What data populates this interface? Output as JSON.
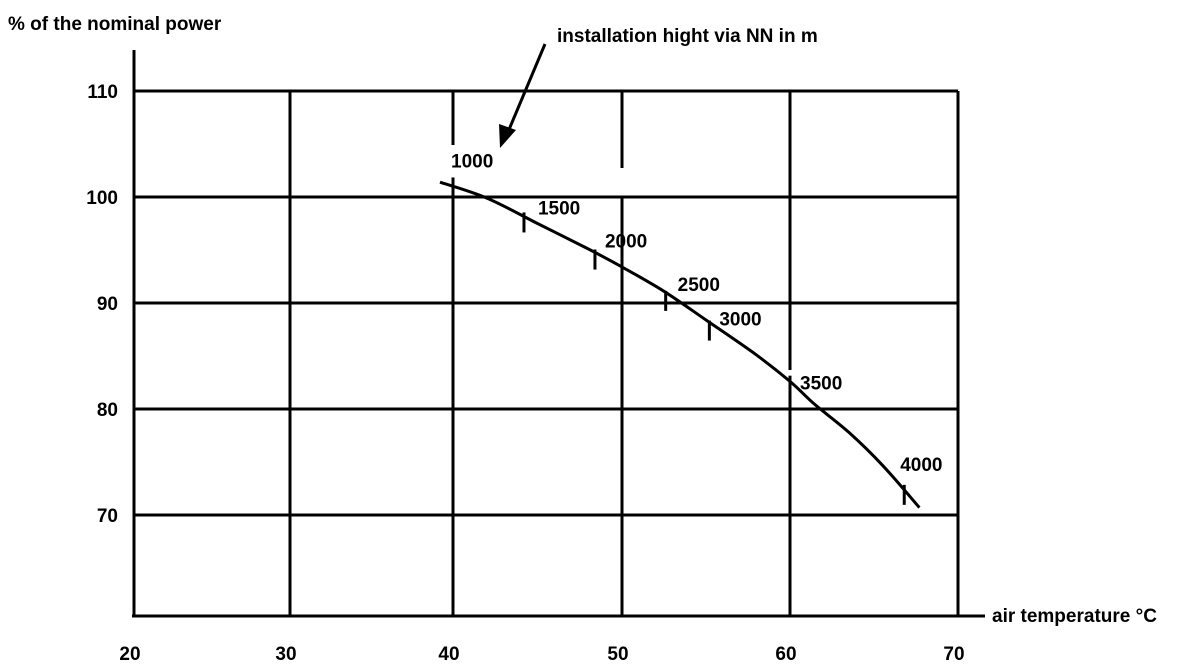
{
  "chart_data": {
    "type": "line",
    "title": "",
    "ylabel": "% of the nominal power",
    "xlabel": "air temperature °C",
    "xlim": [
      20,
      70
    ],
    "ylim": [
      60,
      115
    ],
    "x_ticks": [
      20,
      30,
      40,
      50,
      60,
      70
    ],
    "y_ticks": [
      70,
      80,
      90,
      100,
      110
    ],
    "x_tick_labels": [
      "20",
      "30",
      "40",
      "50",
      "60",
      "70"
    ],
    "y_tick_labels": [
      "70",
      "80",
      "90",
      "100",
      "110"
    ],
    "grid": true,
    "annotation": {
      "text": "installation hight via NN in m",
      "points_to": {
        "x": 42.5,
        "y": 105.2
      }
    },
    "series": [
      {
        "points": [
          {
            "x": 39.2,
            "y": 101.4
          },
          {
            "x": 42.0,
            "y": 99.9
          },
          {
            "x": 45.0,
            "y": 97.5
          },
          {
            "x": 48.0,
            "y": 95.1
          },
          {
            "x": 50.0,
            "y": 93.4
          },
          {
            "x": 52.5,
            "y": 91.1
          },
          {
            "x": 55.0,
            "y": 88.4
          },
          {
            "x": 58.0,
            "y": 85.1
          },
          {
            "x": 60.0,
            "y": 82.6
          },
          {
            "x": 61.5,
            "y": 80.4
          },
          {
            "x": 63.5,
            "y": 77.8
          },
          {
            "x": 65.5,
            "y": 74.7
          },
          {
            "x": 67.7,
            "y": 70.7
          }
        ]
      }
    ],
    "altitude_marks": [
      {
        "label": "1000",
        "x": 40.0,
        "y": 100.9
      },
      {
        "label": "1500",
        "x": 44.2,
        "y": 97.6
      },
      {
        "label": "2000",
        "x": 48.4,
        "y": 94.1
      },
      {
        "label": "2500",
        "x": 52.6,
        "y": 90.2
      },
      {
        "label": "3000",
        "x": 55.2,
        "y": 87.4
      },
      {
        "label": "3500",
        "x": 60.0,
        "y": 82.2
      },
      {
        "label": "4000",
        "x": 66.8,
        "y": 71.9
      }
    ]
  }
}
